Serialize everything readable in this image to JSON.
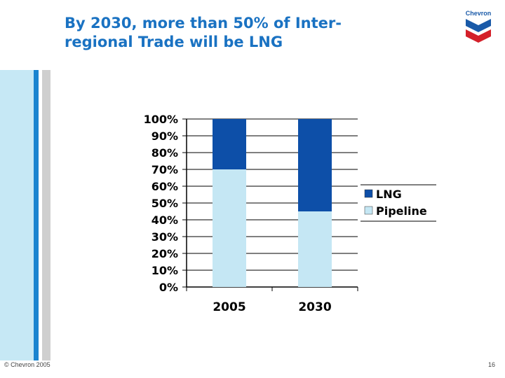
{
  "slide": {
    "title_line1": "By 2030, more than 50% of Inter-",
    "title_line2": "regional Trade will be LNG",
    "logo_text": "Chevron",
    "footer_copyright": "© Chevron 2005",
    "page_number": "16"
  },
  "colors": {
    "title": "#1a72c2",
    "lng": "#0d4fa8",
    "pipeline": "#c5e7f4",
    "logo_blue": "#1a5aa8",
    "logo_red": "#d4202a"
  },
  "chart_data": {
    "type": "bar",
    "stacked": true,
    "categories": [
      "2005",
      "2030"
    ],
    "series": [
      {
        "name": "Pipeline",
        "values": [
          70,
          45
        ]
      },
      {
        "name": "LNG",
        "values": [
          30,
          55
        ]
      }
    ],
    "legend": [
      "LNG",
      "Pipeline"
    ],
    "y_ticks": [
      "0%",
      "10%",
      "20%",
      "30%",
      "40%",
      "50%",
      "60%",
      "70%",
      "80%",
      "90%",
      "100%"
    ],
    "ylim": [
      0,
      100
    ],
    "title": "",
    "xlabel": "",
    "ylabel": "",
    "grid": true,
    "legend_position": "right"
  }
}
